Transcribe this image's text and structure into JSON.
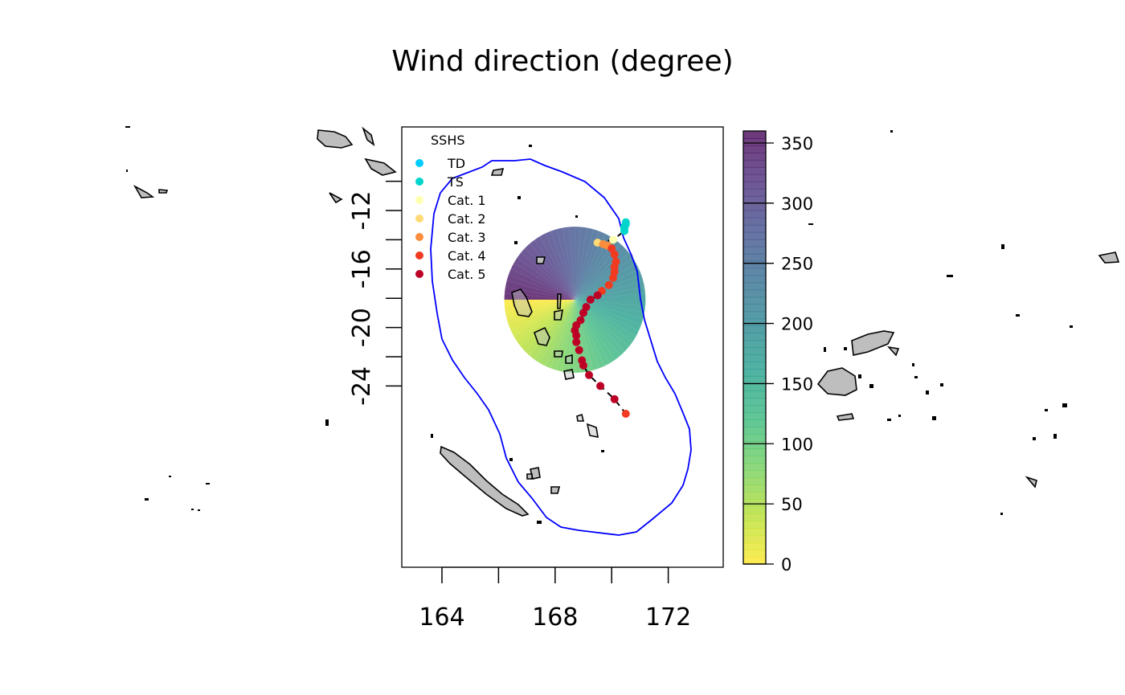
{
  "title": "Wind direction (degree)",
  "axes": {
    "x_ticks": [
      164,
      168,
      172
    ],
    "y_ticks": [
      -12,
      -16,
      -20,
      -24
    ],
    "xlim": [
      162.8,
      174.2
    ],
    "ylim": [
      -24.1,
      -12.8
    ]
  },
  "colorbar": {
    "ticks": [
      "0",
      "50",
      "100",
      "150",
      "200",
      "250",
      "300",
      "350"
    ],
    "tick_values": [
      0,
      50,
      100,
      150,
      200,
      250,
      300,
      350
    ],
    "range": [
      0,
      360
    ],
    "palette": [
      "#fde725",
      "#b5de2b",
      "#6ece58",
      "#35b779",
      "#1f9e89",
      "#26828e",
      "#31688e",
      "#3e4989",
      "#482878",
      "#440154"
    ]
  },
  "legend": {
    "title": "SSHS",
    "items": [
      {
        "label": "TD",
        "color": "#00ccff"
      },
      {
        "label": "TS",
        "color": "#00d5cc"
      },
      {
        "label": "Cat. 1",
        "color": "#ffffb2"
      },
      {
        "label": "Cat. 2",
        "color": "#fed976"
      },
      {
        "label": "Cat. 3",
        "color": "#fd8d3c"
      },
      {
        "label": "Cat. 4",
        "color": "#f03b20"
      },
      {
        "label": "Cat. 5",
        "color": "#bd0026"
      }
    ]
  },
  "track": [
    {
      "lon": 170.5,
      "lat": -12.8,
      "cat": "TS"
    },
    {
      "lon": 170.5,
      "lat": -12.95,
      "cat": "TS"
    },
    {
      "lon": 170.45,
      "lat": -13.1,
      "cat": "TS"
    },
    {
      "lon": 170.45,
      "lat": -13.25,
      "cat": "TS"
    },
    {
      "lon": 170.45,
      "lat": -13.4,
      "cat": "TS"
    },
    {
      "lon": 170.05,
      "lat": -14.0,
      "cat": "Cat. 1"
    },
    {
      "lon": 169.5,
      "lat": -14.2,
      "cat": "Cat. 2"
    },
    {
      "lon": 169.7,
      "lat": -14.3,
      "cat": "Cat. 3"
    },
    {
      "lon": 169.85,
      "lat": -14.4,
      "cat": "Cat. 3"
    },
    {
      "lon": 170.0,
      "lat": -14.6,
      "cat": "Cat. 4"
    },
    {
      "lon": 170.1,
      "lat": -15.0,
      "cat": "Cat. 4"
    },
    {
      "lon": 170.15,
      "lat": -15.5,
      "cat": "Cat. 4"
    },
    {
      "lon": 170.1,
      "lat": -15.85,
      "cat": "Cat. 4"
    },
    {
      "lon": 170.1,
      "lat": -16.2,
      "cat": "Cat. 4"
    },
    {
      "lon": 170.05,
      "lat": -16.6,
      "cat": "Cat. 4"
    },
    {
      "lon": 169.9,
      "lat": -17.1,
      "cat": "Cat. 4"
    },
    {
      "lon": 169.65,
      "lat": -17.5,
      "cat": "Cat. 4"
    },
    {
      "lon": 169.5,
      "lat": -17.8,
      "cat": "Cat. 5"
    },
    {
      "lon": 169.25,
      "lat": -18.1,
      "cat": "Cat. 5"
    },
    {
      "lon": 169.1,
      "lat": -18.6,
      "cat": "Cat. 5"
    },
    {
      "lon": 169.0,
      "lat": -19.0,
      "cat": "Cat. 5"
    },
    {
      "lon": 168.9,
      "lat": -19.5,
      "cat": "Cat. 5"
    },
    {
      "lon": 168.75,
      "lat": -19.85,
      "cat": "Cat. 5"
    },
    {
      "lon": 168.7,
      "lat": -20.2,
      "cat": "Cat. 5"
    },
    {
      "lon": 168.75,
      "lat": -20.55,
      "cat": "Cat. 5"
    },
    {
      "lon": 168.75,
      "lat": -21.0,
      "cat": "Cat. 5"
    },
    {
      "lon": 168.85,
      "lat": -21.55,
      "cat": "Cat. 5"
    },
    {
      "lon": 168.95,
      "lat": -22.25,
      "cat": "Cat. 5"
    },
    {
      "lon": 169.0,
      "lat": -22.6,
      "cat": "Cat. 5"
    },
    {
      "lon": 169.2,
      "lat": -23.25,
      "cat": "Cat. 5"
    },
    {
      "lon": 169.6,
      "lat": -24.0,
      "cat": "Cat. 5"
    },
    {
      "lon": 170.1,
      "lat": -24.9,
      "cat": "Cat. 5"
    },
    {
      "lon": 170.5,
      "lat": -25.9,
      "cat": "Cat. 4"
    }
  ],
  "wind_field": {
    "center_lon": 168.7,
    "center_lat": -18.1,
    "radius_deg": 2.4
  }
}
